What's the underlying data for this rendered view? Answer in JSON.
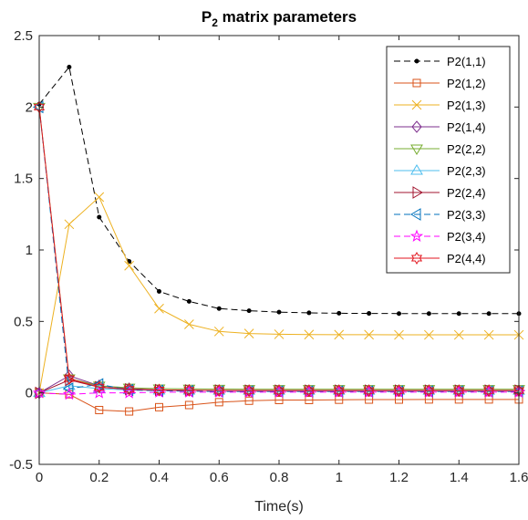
{
  "chart_data": {
    "type": "line",
    "title": "P",
    "title_sub": "2",
    "title_rest": " matrix parameters",
    "xlabel": "Time(s)",
    "ylabel": "",
    "xlim": [
      0,
      1.6
    ],
    "ylim": [
      -0.5,
      2.5
    ],
    "xticks": [
      0,
      0.2,
      0.4,
      0.6,
      0.8,
      1,
      1.2,
      1.4,
      1.6
    ],
    "xtick_labels": [
      "0",
      "0.2",
      "0.4",
      "0.6",
      "0.8",
      "1",
      "1.2",
      "1.4",
      "1.6"
    ],
    "yticks": [
      -0.5,
      0,
      0.5,
      1,
      1.5,
      2,
      2.5
    ],
    "ytick_labels": [
      "-0.5",
      "0",
      "0.5",
      "1",
      "1.5",
      "2",
      "2.5"
    ],
    "grid": false,
    "legend_position": "top-right",
    "x": [
      0,
      0.1,
      0.2,
      0.3,
      0.4,
      0.5,
      0.6,
      0.7,
      0.8,
      0.9,
      1.0,
      1.1,
      1.2,
      1.3,
      1.4,
      1.5,
      1.6
    ],
    "series": [
      {
        "name": "P2(1,1)",
        "color": "#000000",
        "dash": "dashed",
        "marker": "dot",
        "values": [
          2.02,
          2.28,
          1.23,
          0.92,
          0.71,
          0.64,
          0.59,
          0.575,
          0.565,
          0.56,
          0.557,
          0.556,
          0.555,
          0.555,
          0.555,
          0.555,
          0.555
        ]
      },
      {
        "name": "P2(1,2)",
        "color": "#D95319",
        "dash": "solid",
        "marker": "square",
        "values": [
          0,
          -0.01,
          -0.12,
          -0.13,
          -0.1,
          -0.085,
          -0.065,
          -0.055,
          -0.05,
          -0.05,
          -0.048,
          -0.047,
          -0.047,
          -0.046,
          -0.046,
          -0.046,
          -0.046
        ]
      },
      {
        "name": "P2(1,3)",
        "color": "#EDB120",
        "dash": "solid",
        "marker": "x",
        "values": [
          0,
          1.18,
          1.37,
          0.89,
          0.59,
          0.48,
          0.43,
          0.415,
          0.41,
          0.408,
          0.407,
          0.407,
          0.406,
          0.406,
          0.406,
          0.406,
          0.406
        ]
      },
      {
        "name": "P2(1,4)",
        "color": "#7E2F8E",
        "dash": "solid",
        "marker": "diamond",
        "values": [
          0,
          0.12,
          0.05,
          0.03,
          0.02,
          0.018,
          0.016,
          0.015,
          0.015,
          0.014,
          0.014,
          0.014,
          0.014,
          0.014,
          0.014,
          0.014,
          0.014
        ]
      },
      {
        "name": "P2(2,2)",
        "color": "#77AC30",
        "dash": "solid",
        "marker": "triangle-down",
        "values": [
          2.0,
          0.1,
          0.05,
          0.035,
          0.03,
          0.028,
          0.027,
          0.026,
          0.026,
          0.026,
          0.026,
          0.026,
          0.026,
          0.026,
          0.026,
          0.026,
          0.026
        ]
      },
      {
        "name": "P2(2,3)",
        "color": "#4DBEEE",
        "dash": "solid",
        "marker": "triangle-up",
        "values": [
          0,
          0.05,
          0.03,
          0.02,
          0.018,
          0.017,
          0.016,
          0.016,
          0.016,
          0.016,
          0.016,
          0.016,
          0.016,
          0.016,
          0.016,
          0.016,
          0.016
        ]
      },
      {
        "name": "P2(2,4)",
        "color": "#A2142F",
        "dash": "solid",
        "marker": "triangle-right",
        "values": [
          0,
          0.09,
          0.04,
          0.025,
          0.02,
          0.018,
          0.017,
          0.016,
          0.016,
          0.016,
          0.016,
          0.016,
          0.016,
          0.016,
          0.016,
          0.016,
          0.016
        ]
      },
      {
        "name": "P2(3,3)",
        "color": "#0072BD",
        "dash": "dashed",
        "marker": "triangle-left",
        "values": [
          2.0,
          0.03,
          0.06,
          0.02,
          0.015,
          0.012,
          0.01,
          0.01,
          0.01,
          0.01,
          0.01,
          0.01,
          0.01,
          0.01,
          0.01,
          0.01,
          0.01
        ]
      },
      {
        "name": "P2(3,4)",
        "color": "#FF00FF",
        "dash": "dashed",
        "marker": "pentagram",
        "values": [
          0,
          -0.01,
          0.0,
          0.0,
          0.005,
          0.005,
          0.005,
          0.005,
          0.005,
          0.005,
          0.005,
          0.005,
          0.005,
          0.005,
          0.005,
          0.005,
          0.005
        ]
      },
      {
        "name": "P2(4,4)",
        "color": "#E3161F",
        "dash": "solid",
        "marker": "hexagram",
        "values": [
          2.0,
          0.1,
          0.04,
          0.025,
          0.02,
          0.018,
          0.017,
          0.016,
          0.016,
          0.016,
          0.016,
          0.016,
          0.016,
          0.016,
          0.016,
          0.016,
          0.016
        ]
      }
    ]
  }
}
